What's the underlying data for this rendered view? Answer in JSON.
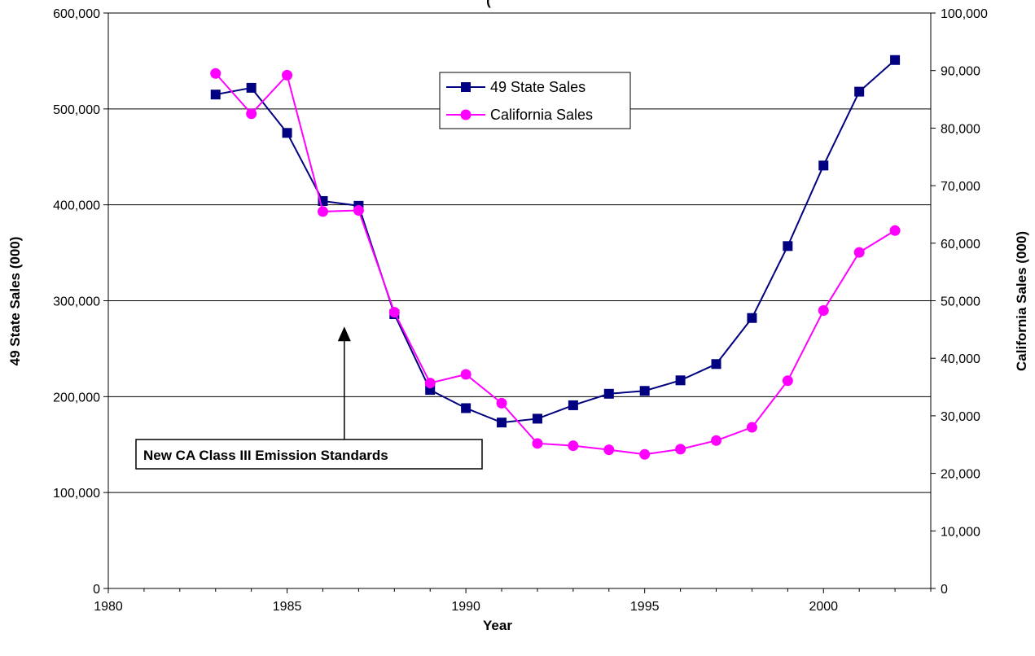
{
  "chart_data": {
    "type": "line",
    "title": "(",
    "xlabel": "Year",
    "ylabel": "49 State Sales (000)",
    "y2label": "California Sales (000)",
    "xlim": [
      1980,
      2003
    ],
    "xticks": [
      1980,
      1985,
      1990,
      1995,
      2000
    ],
    "ylim": [
      0,
      600000
    ],
    "yticks": [
      0,
      100000,
      200000,
      300000,
      400000,
      500000,
      600000
    ],
    "y2lim": [
      0,
      100000
    ],
    "y2ticks": [
      0,
      10000,
      20000,
      30000,
      40000,
      50000,
      60000,
      70000,
      80000,
      90000,
      100000
    ],
    "grid": "horizontal",
    "legend_position": "top-center",
    "series": [
      {
        "name": "49 State Sales",
        "axis": "left",
        "color": "#000080",
        "marker": "square",
        "points": [
          [
            1983,
            515000
          ],
          [
            1984,
            522000
          ],
          [
            1985,
            475000
          ],
          [
            1986,
            404000
          ],
          [
            1987,
            399000
          ],
          [
            1988,
            286000
          ],
          [
            1989,
            207000
          ],
          [
            1990,
            188000
          ],
          [
            1991,
            173000
          ],
          [
            1992,
            177000
          ],
          [
            1993,
            191000
          ],
          [
            1994,
            203000
          ],
          [
            1995,
            206000
          ],
          [
            1996,
            217000
          ],
          [
            1997,
            234000
          ],
          [
            1998,
            282000
          ],
          [
            1999,
            357000
          ],
          [
            2000,
            441000
          ],
          [
            2001,
            518000
          ],
          [
            2002,
            551000
          ]
        ]
      },
      {
        "name": "California Sales",
        "axis": "right",
        "color": "#FF00FF",
        "marker": "circle",
        "points": [
          [
            1983,
            89500
          ],
          [
            1984,
            82500
          ],
          [
            1985,
            89200
          ],
          [
            1986,
            65500
          ],
          [
            1987,
            65700
          ],
          [
            1988,
            48000
          ],
          [
            1989,
            35700
          ],
          [
            1990,
            37200
          ],
          [
            1991,
            32200
          ],
          [
            1992,
            25200
          ],
          [
            1993,
            24800
          ],
          [
            1994,
            24100
          ],
          [
            1995,
            23300
          ],
          [
            1996,
            24200
          ],
          [
            1997,
            25700
          ],
          [
            1998,
            28000
          ],
          [
            1999,
            36100
          ],
          [
            2000,
            48300
          ],
          [
            2001,
            58400
          ],
          [
            2002,
            62200
          ]
        ]
      }
    ],
    "annotation": {
      "text": "New CA Class III Emission Standards",
      "arrow_x": 1986.6,
      "arrow_target_y": 290000
    }
  }
}
